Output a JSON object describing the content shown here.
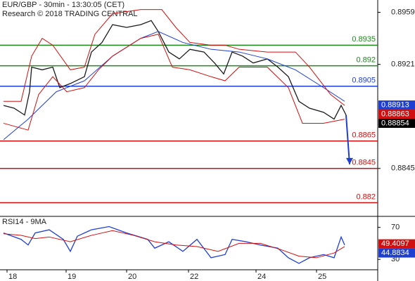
{
  "chart_data": [
    {
      "type": "line",
      "title": "EUR/GBP - 30min - 13:30:05 (CET)",
      "subtitle": "Research © 2018 TRADING CENTRAL",
      "xlim": [
        0,
        268.5
      ],
      "xticks": [
        {
          "value": 5,
          "label": "18"
        },
        {
          "value": 47,
          "label": "19"
        },
        {
          "value": 90,
          "label": "20"
        },
        {
          "value": 134,
          "label": "22"
        },
        {
          "value": 182,
          "label": "24"
        },
        {
          "value": 225,
          "label": "25"
        }
      ],
      "ylim": [
        0.881,
        0.8968
      ],
      "yticks": [
        0.8959,
        0.8921,
        0.8845
      ],
      "series": [
        {
          "color": "#1a1a1a",
          "x": [
            2.5,
            10,
            17.5,
            21,
            22.5,
            30,
            37.5,
            42.5,
            50,
            60,
            65,
            72.5,
            80,
            90,
            100,
            107.5,
            112.5,
            120,
            127.5,
            135,
            145,
            152.5,
            159,
            165,
            172.5,
            180,
            190,
            197.5,
            205,
            212.5,
            220,
            230,
            237.5,
            242.5,
            246
          ],
          "values": [
            0.8891,
            0.8889,
            0.8884,
            0.8901,
            0.8919,
            0.8917,
            0.8919,
            0.8904,
            0.8907,
            0.8912,
            0.893,
            0.8937,
            0.895,
            0.8948,
            0.895,
            0.8953,
            0.8945,
            0.893,
            0.8925,
            0.8932,
            0.893,
            0.8922,
            0.8914,
            0.893,
            0.8927,
            0.8922,
            0.8925,
            0.8919,
            0.8912,
            0.8894,
            0.8889,
            0.8886,
            0.8881,
            0.8891,
            0.8884
          ]
        },
        {
          "color": "#1f3fd0",
          "x": [
            2.5,
            20,
            40,
            60,
            80,
            100,
            112.5,
            130,
            150,
            170,
            190,
            210,
            230,
            245
          ],
          "values": [
            0.8866,
            0.8881,
            0.8901,
            0.8909,
            0.8927,
            0.894,
            0.8945,
            0.8937,
            0.8932,
            0.893,
            0.8925,
            0.8917,
            0.8904,
            0.8894
          ]
        },
        {
          "color": "#d01010",
          "x": [
            2.5,
            15,
            22.5,
            30,
            37.5,
            50,
            60,
            67.5,
            80,
            100,
            115,
            125,
            135,
            150,
            160,
            170,
            190,
            210,
            220,
            235,
            245
          ],
          "values": [
            0.8894,
            0.8894,
            0.8927,
            0.894,
            0.8935,
            0.8917,
            0.8919,
            0.8943,
            0.8958,
            0.8961,
            0.8961,
            0.8948,
            0.8937,
            0.8935,
            0.8935,
            0.8932,
            0.893,
            0.893,
            0.8919,
            0.8899,
            0.8891
          ]
        },
        {
          "color": "#d01010",
          "x": [
            2.5,
            20,
            27.5,
            37.5,
            47.5,
            60,
            70,
            80,
            100,
            112.5,
            122.5,
            135,
            150,
            160,
            170,
            190,
            205,
            215,
            230,
            245
          ],
          "values": [
            0.8878,
            0.8873,
            0.8899,
            0.8912,
            0.8901,
            0.8904,
            0.8917,
            0.8927,
            0.894,
            0.8943,
            0.8919,
            0.8917,
            0.8912,
            0.8909,
            0.8919,
            0.8919,
            0.8904,
            0.8878,
            0.8878,
            0.8881
          ]
        }
      ],
      "projection": {
        "color": "#1f3fd0",
        "x": [
          246,
          248.5
        ],
        "values": [
          0.8884,
          0.8848
        ]
      },
      "levels": [
        {
          "value": 0.8935,
          "color": "#1a8a1a"
        },
        {
          "value": 0.892,
          "color": "#1a8a1a"
        },
        {
          "value": 0.8905,
          "color": "#1f3fd0"
        },
        {
          "value": 0.8865,
          "color": "#d01010"
        },
        {
          "value": 0.8845,
          "color": "#d01010"
        },
        {
          "value": 0.882,
          "color": "#d01010"
        }
      ],
      "markers": [
        {
          "value": 0.88913,
          "color": "#1f3fd0"
        },
        {
          "value": 0.88863,
          "color": "#d01010"
        },
        {
          "value": 0.88854,
          "color": "#000000"
        }
      ]
    },
    {
      "type": "line",
      "title": "RSI14 - 9MA",
      "xlim": [
        0,
        268.5
      ],
      "ylim": [
        17,
        82
      ],
      "yticks": [
        70,
        30
      ],
      "series": [
        {
          "color": "#1f3fd0",
          "x": [
            2.5,
            15,
            20,
            25,
            35,
            45,
            50,
            55,
            65,
            77.5,
            90,
            105,
            110,
            120,
            130,
            140,
            150,
            160,
            165,
            175,
            185,
            197.5,
            205,
            212.5,
            220,
            230,
            237.5,
            242.5,
            245
          ],
          "values": [
            63,
            55,
            48,
            63,
            67,
            55,
            40,
            59,
            67,
            71,
            63,
            55,
            44,
            52,
            40,
            55,
            32,
            36,
            55,
            52,
            48,
            44,
            32,
            25,
            32,
            36,
            32,
            58,
            48
          ]
        },
        {
          "color": "#d01010",
          "x": [
            2.5,
            15,
            25,
            35,
            50,
            65,
            80,
            95,
            110,
            125,
            140,
            155,
            170,
            185,
            200,
            212.5,
            225,
            237.5,
            245
          ],
          "values": [
            62,
            60,
            56,
            58,
            52,
            60,
            66,
            60,
            52,
            48,
            46,
            40,
            50,
            50,
            42,
            34,
            32,
            38,
            46
          ]
        }
      ],
      "markers": [
        {
          "value": 49.4097,
          "color": "#d01010"
        },
        {
          "value": 44.8834,
          "color": "#1f3fd0"
        }
      ]
    }
  ]
}
